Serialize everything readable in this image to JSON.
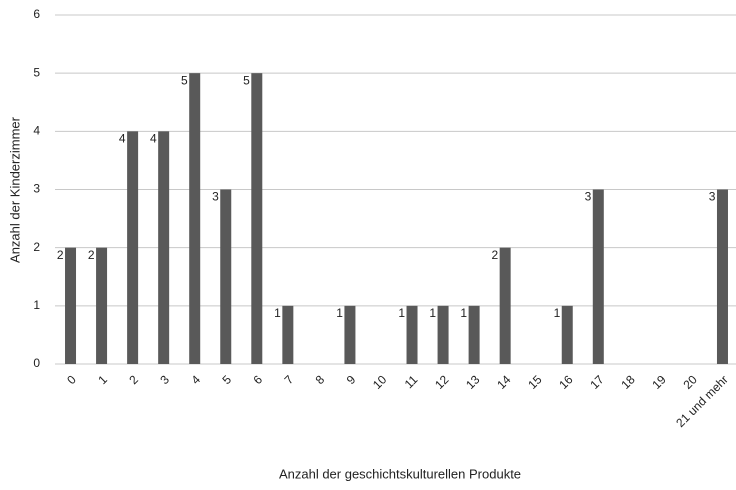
{
  "chart_data": {
    "type": "bar",
    "x_label": "Anzahl der geschichtskulturellen Produkte",
    "y_label": "Anzahl der Kinderzimmer",
    "categories": [
      "0",
      "1",
      "2",
      "3",
      "4",
      "5",
      "6",
      "7",
      "8",
      "9",
      "10",
      "11",
      "12",
      "13",
      "14",
      "15",
      "16",
      "17",
      "18",
      "19",
      "20",
      "21 und mehr"
    ],
    "values": [
      2,
      2,
      4,
      4,
      5,
      3,
      5,
      1,
      0,
      1,
      0,
      1,
      1,
      1,
      2,
      0,
      1,
      3,
      0,
      0,
      0,
      3
    ],
    "color": "#595959",
    "ylim": [
      0,
      6
    ],
    "yticks": [
      0,
      1,
      2,
      3,
      4,
      5,
      6
    ],
    "grid": true
  }
}
